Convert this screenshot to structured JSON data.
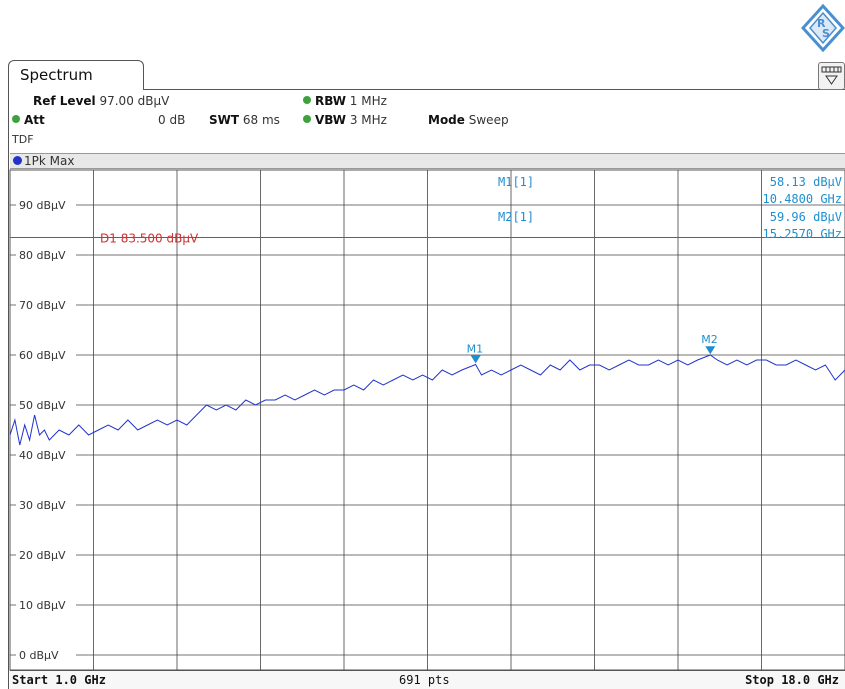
{
  "tab": {
    "label": "Spectrum"
  },
  "header": {
    "ref_level_label": "Ref Level",
    "ref_level_value": "97.00 dBµV",
    "att_label": "Att",
    "att_value": "0 dB",
    "swt_label": "SWT",
    "swt_value": "68 ms",
    "rbw_label": "RBW",
    "rbw_value": "1 MHz",
    "vbw_label": "VBW",
    "vbw_value": "3 MHz",
    "mode_label": "Mode",
    "mode_value": "Sweep",
    "tdf": "TDF"
  },
  "trace": {
    "label": "1Pk Max",
    "color": "#2233cc"
  },
  "markers": {
    "m1_name": "M1[1]",
    "m1_level": "58.13 dBµV",
    "m1_freq": "10.4800 GHz",
    "m2_name": "M2[1]",
    "m2_level": "59.96 dBµV",
    "m2_freq": "15.2570 GHz",
    "m1_tag": "M1",
    "m2_tag": "M2",
    "color": "#1f8fd0"
  },
  "display_line": {
    "label": "D1 83.500 dBµV",
    "value": 83.5,
    "color": "#cc3333"
  },
  "footer": {
    "start": "Start 1.0 GHz",
    "points": "691 pts",
    "stop": "Stop 18.0 GHz"
  },
  "chart_data": {
    "type": "line",
    "xlim": [
      1.0,
      18.0
    ],
    "ylim": [
      -3,
      97
    ],
    "yticks": [
      0,
      10,
      20,
      30,
      40,
      50,
      60,
      70,
      80,
      90
    ],
    "ytick_labels": [
      "0 dBµV",
      "10 dBµV",
      "20 dBµV",
      "30 dBµV",
      "40 dBµV",
      "50 dBµV",
      "60 dBµV",
      "70 dBµV",
      "80 dBµV",
      "90 dBµV"
    ],
    "grid": true,
    "series": [
      {
        "x": [
          1.0,
          1.1,
          1.2,
          1.3,
          1.4,
          1.5,
          1.6,
          1.7,
          1.8,
          2.0,
          2.2,
          2.4,
          2.6,
          2.8,
          3.0,
          3.2,
          3.4,
          3.6,
          3.8,
          4.0,
          4.2,
          4.4,
          4.6,
          4.8,
          5.0,
          5.2,
          5.4,
          5.6,
          5.8,
          6.0,
          6.2,
          6.4,
          6.6,
          6.8,
          7.0,
          7.2,
          7.4,
          7.6,
          7.8,
          8.0,
          8.2,
          8.4,
          8.6,
          8.8,
          9.0,
          9.2,
          9.4,
          9.6,
          9.8,
          10.0,
          10.2,
          10.48,
          10.6,
          10.8,
          11.0,
          11.2,
          11.4,
          11.6,
          11.8,
          12.0,
          12.2,
          12.4,
          12.6,
          12.8,
          13.0,
          13.2,
          13.4,
          13.6,
          13.8,
          14.0,
          14.2,
          14.4,
          14.6,
          14.8,
          15.0,
          15.257,
          15.4,
          15.6,
          15.8,
          16.0,
          16.2,
          16.4,
          16.6,
          16.8,
          17.0,
          17.2,
          17.4,
          17.6,
          17.8,
          18.0
        ],
        "y": [
          44,
          47,
          42,
          46,
          43,
          48,
          44,
          45,
          43,
          45,
          44,
          46,
          44,
          45,
          46,
          45,
          47,
          45,
          46,
          47,
          46,
          47,
          46,
          48,
          50,
          49,
          50,
          49,
          51,
          50,
          51,
          51,
          52,
          51,
          52,
          53,
          52,
          53,
          53,
          54,
          53,
          55,
          54,
          55,
          56,
          55,
          56,
          55,
          57,
          56,
          57,
          58.1,
          56,
          57,
          56,
          57,
          58,
          57,
          56,
          58,
          57,
          59,
          57,
          58,
          58,
          57,
          58,
          59,
          58,
          58,
          59,
          58,
          59,
          58,
          59,
          60.0,
          59,
          58,
          59,
          58,
          59,
          59,
          58,
          58,
          59,
          58,
          57,
          58,
          55,
          57
        ]
      }
    ]
  }
}
